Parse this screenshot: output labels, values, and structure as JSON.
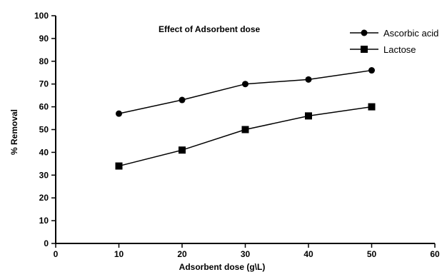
{
  "chart_data": {
    "type": "line",
    "title": "Effect of Adsorbent dose",
    "xlabel": "Adsorbent dose (g\\L)",
    "ylabel": "% Removal",
    "xlim": [
      0,
      60
    ],
    "ylim": [
      0,
      100
    ],
    "x_ticks": [
      "0",
      "10",
      "20",
      "30",
      "40",
      "50",
      "60"
    ],
    "y_ticks": [
      "0",
      "10",
      "20",
      "30",
      "40",
      "50",
      "60",
      "70",
      "80",
      "90",
      "100"
    ],
    "grid": false,
    "legend_position": "top-right",
    "x": [
      10,
      20,
      30,
      40,
      50
    ],
    "series": [
      {
        "name": "Ascorbic acid",
        "marker": "circle",
        "color": "#000000",
        "values": [
          57,
          63,
          70,
          72,
          76
        ]
      },
      {
        "name": "Lactose",
        "marker": "square",
        "color": "#000000",
        "values": [
          34,
          41,
          50,
          56,
          60
        ]
      }
    ]
  }
}
